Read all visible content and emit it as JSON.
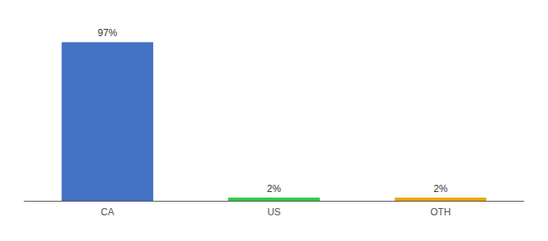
{
  "chart_data": {
    "type": "bar",
    "categories": [
      "CA",
      "US",
      "OTH"
    ],
    "values": [
      97,
      2,
      2
    ],
    "value_labels": [
      "97%",
      "2%",
      "2%"
    ],
    "colors": [
      "#4472c4",
      "#2ecc40",
      "#f0a500"
    ],
    "ylim": [
      0,
      108
    ],
    "data_labels": true,
    "tick_labels": "x",
    "grid": false
  }
}
